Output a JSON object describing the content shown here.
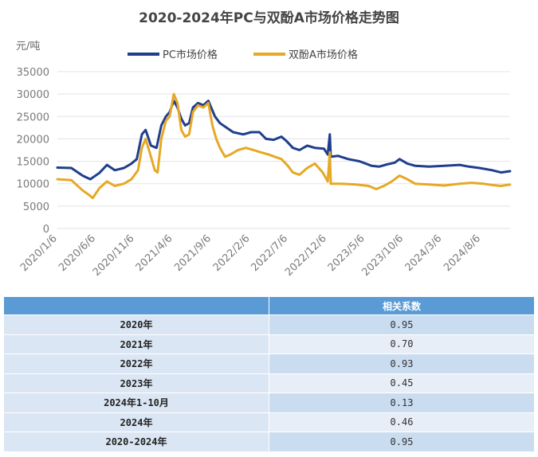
{
  "chart_data": {
    "type": "line",
    "title": "2020-2024年PC与双酚A市场价格走势图",
    "ylabel": "元/吨",
    "ylim": [
      0,
      35000
    ],
    "yticks": [
      0,
      5000,
      10000,
      15000,
      20000,
      25000,
      30000,
      35000
    ],
    "x_ticks": [
      "2020/1/6",
      "2020/6/6",
      "2020/11/6",
      "2021/4/6",
      "2021/9/6",
      "2022/2/6",
      "2022/7/6",
      "2022/12/6",
      "2023/5/6",
      "2023/10/6",
      "2024/3/6",
      "2024/8/6"
    ],
    "xlim": [
      "2020-01-06",
      "2024-11-30"
    ],
    "grid": "horizontal",
    "legend_position": "top",
    "series": [
      {
        "name": "PC市场价格",
        "color": "#1f3e8c",
        "points": [
          [
            "2020-01-06",
            13600
          ],
          [
            "2020-03-01",
            13500
          ],
          [
            "2020-04-15",
            11800
          ],
          [
            "2020-05-15",
            11000
          ],
          [
            "2020-06-20",
            12400
          ],
          [
            "2020-07-20",
            14200
          ],
          [
            "2020-08-20",
            13000
          ],
          [
            "2020-09-25",
            13500
          ],
          [
            "2020-10-25",
            14500
          ],
          [
            "2020-11-15",
            15500
          ],
          [
            "2020-12-05",
            21000
          ],
          [
            "2020-12-20",
            22000
          ],
          [
            "2021-01-10",
            18500
          ],
          [
            "2021-02-01",
            18000
          ],
          [
            "2021-02-20",
            23000
          ],
          [
            "2021-03-10",
            25000
          ],
          [
            "2021-03-25",
            26000
          ],
          [
            "2021-04-10",
            28500
          ],
          [
            "2021-04-25",
            27000
          ],
          [
            "2021-05-10",
            24500
          ],
          [
            "2021-05-25",
            23000
          ],
          [
            "2021-06-10",
            23500
          ],
          [
            "2021-06-25",
            27000
          ],
          [
            "2021-07-15",
            28000
          ],
          [
            "2021-08-05",
            27500
          ],
          [
            "2021-08-25",
            28500
          ],
          [
            "2021-09-20",
            25000
          ],
          [
            "2021-10-10",
            23500
          ],
          [
            "2021-11-05",
            22500
          ],
          [
            "2021-12-01",
            21500
          ],
          [
            "2022-01-10",
            21000
          ],
          [
            "2022-02-10",
            21500
          ],
          [
            "2022-03-15",
            21500
          ],
          [
            "2022-04-10",
            20000
          ],
          [
            "2022-05-10",
            19800
          ],
          [
            "2022-06-10",
            20500
          ],
          [
            "2022-06-30",
            19500
          ],
          [
            "2022-07-25",
            18000
          ],
          [
            "2022-08-20",
            17500
          ],
          [
            "2022-09-20",
            18500
          ],
          [
            "2022-10-20",
            18000
          ],
          [
            "2022-11-25",
            17800
          ],
          [
            "2022-12-10",
            16500
          ],
          [
            "2022-12-18",
            21000
          ],
          [
            "2022-12-22",
            16000
          ],
          [
            "2023-01-20",
            16200
          ],
          [
            "2023-03-01",
            15500
          ],
          [
            "2023-04-15",
            15000
          ],
          [
            "2023-06-01",
            14000
          ],
          [
            "2023-07-01",
            13800
          ],
          [
            "2023-08-01",
            14300
          ],
          [
            "2023-09-01",
            14700
          ],
          [
            "2023-09-20",
            15500
          ],
          [
            "2023-10-20",
            14500
          ],
          [
            "2023-11-20",
            14000
          ],
          [
            "2024-01-15",
            13800
          ],
          [
            "2024-03-15",
            14000
          ],
          [
            "2024-05-15",
            14200
          ],
          [
            "2024-06-20",
            13800
          ],
          [
            "2024-08-01",
            13500
          ],
          [
            "2024-09-20",
            13000
          ],
          [
            "2024-10-25",
            12500
          ],
          [
            "2024-11-30",
            12800
          ]
        ]
      },
      {
        "name": "双酚A市场价格",
        "color": "#e6a825",
        "points": [
          [
            "2020-01-06",
            11000
          ],
          [
            "2020-03-01",
            10800
          ],
          [
            "2020-04-15",
            8500
          ],
          [
            "2020-05-10",
            7500
          ],
          [
            "2020-05-25",
            6800
          ],
          [
            "2020-06-20",
            9000
          ],
          [
            "2020-07-20",
            10500
          ],
          [
            "2020-08-20",
            9500
          ],
          [
            "2020-09-25",
            10000
          ],
          [
            "2020-10-25",
            11000
          ],
          [
            "2020-11-20",
            13000
          ],
          [
            "2020-12-05",
            18000
          ],
          [
            "2020-12-20",
            20000
          ],
          [
            "2021-01-10",
            16000
          ],
          [
            "2021-01-25",
            13000
          ],
          [
            "2021-02-05",
            12500
          ],
          [
            "2021-02-20",
            20000
          ],
          [
            "2021-03-10",
            24000
          ],
          [
            "2021-03-25",
            25000
          ],
          [
            "2021-04-10",
            30000
          ],
          [
            "2021-04-25",
            28000
          ],
          [
            "2021-05-10",
            22000
          ],
          [
            "2021-05-25",
            20500
          ],
          [
            "2021-06-10",
            21000
          ],
          [
            "2021-06-25",
            26000
          ],
          [
            "2021-07-15",
            27500
          ],
          [
            "2021-08-05",
            27000
          ],
          [
            "2021-08-25",
            28000
          ],
          [
            "2021-09-10",
            23000
          ],
          [
            "2021-09-25",
            20000
          ],
          [
            "2021-10-10",
            18000
          ],
          [
            "2021-10-30",
            16000
          ],
          [
            "2021-11-20",
            16500
          ],
          [
            "2021-12-20",
            17500
          ],
          [
            "2022-01-20",
            18000
          ],
          [
            "2022-02-20",
            17500
          ],
          [
            "2022-03-20",
            17000
          ],
          [
            "2022-04-20",
            16500
          ],
          [
            "2022-05-15",
            16000
          ],
          [
            "2022-06-10",
            15500
          ],
          [
            "2022-07-05",
            14000
          ],
          [
            "2022-07-25",
            12500
          ],
          [
            "2022-08-20",
            12000
          ],
          [
            "2022-09-20",
            13500
          ],
          [
            "2022-10-20",
            14500
          ],
          [
            "2022-11-20",
            12500
          ],
          [
            "2022-12-10",
            10500
          ],
          [
            "2022-12-18",
            17000
          ],
          [
            "2022-12-22",
            10000
          ],
          [
            "2023-02-01",
            10000
          ],
          [
            "2023-04-01",
            9800
          ],
          [
            "2023-05-20",
            9500
          ],
          [
            "2023-06-20",
            8800
          ],
          [
            "2023-07-20",
            9500
          ],
          [
            "2023-08-20",
            10500
          ],
          [
            "2023-09-20",
            11800
          ],
          [
            "2023-10-20",
            11000
          ],
          [
            "2023-11-20",
            10000
          ],
          [
            "2024-01-15",
            9800
          ],
          [
            "2024-03-15",
            9600
          ],
          [
            "2024-05-15",
            10000
          ],
          [
            "2024-07-01",
            10200
          ],
          [
            "2024-08-15",
            10000
          ],
          [
            "2024-09-20",
            9700
          ],
          [
            "2024-10-25",
            9500
          ],
          [
            "2024-11-30",
            9800
          ]
        ]
      }
    ]
  },
  "table": {
    "header": [
      "",
      "相关系数"
    ],
    "rows": [
      {
        "year": "2020年",
        "value": "0.95"
      },
      {
        "year": "2021年",
        "value": "0.70"
      },
      {
        "year": "2022年",
        "value": "0.93"
      },
      {
        "year": "2023年",
        "value": "0.45"
      },
      {
        "year": "2024年1-10月",
        "value": "0.13"
      },
      {
        "year": "2024年",
        "value": "0.46"
      },
      {
        "year": "2020-2024年",
        "value": "0.95"
      }
    ]
  }
}
